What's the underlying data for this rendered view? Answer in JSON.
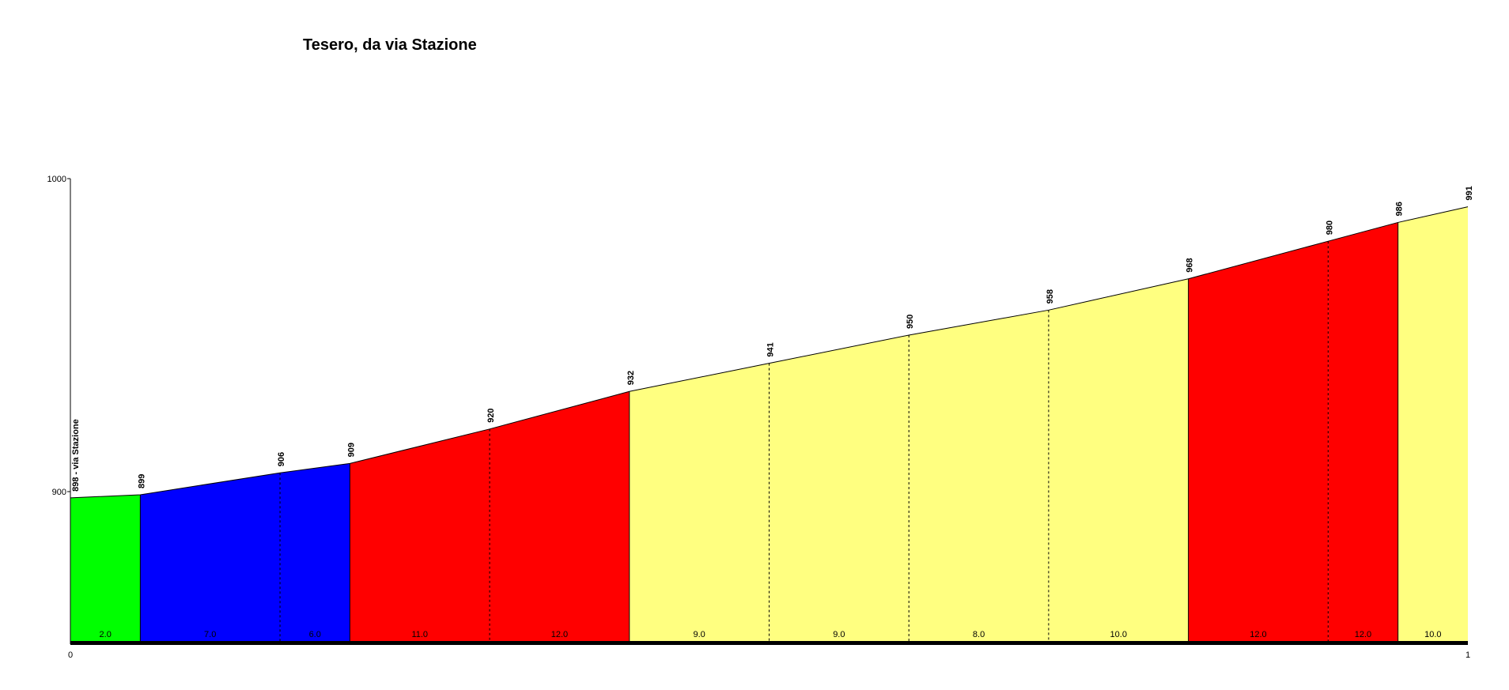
{
  "chart_data": {
    "type": "area",
    "title": "Tesero, da via Stazione",
    "xlabel": "",
    "ylabel": "",
    "xlim": [
      0,
      1
    ],
    "ylim": [
      855,
      1000
    ],
    "x_ticks": [
      "0",
      "1"
    ],
    "y_ticks": [
      "900",
      "1000"
    ],
    "grid": false,
    "legend": "none",
    "points": [
      {
        "x": 0.0,
        "elevation": 898,
        "label": "898 - via Stazione"
      },
      {
        "x": 0.05,
        "elevation": 899,
        "label": "899"
      },
      {
        "x": 0.15,
        "elevation": 906,
        "label": "906"
      },
      {
        "x": 0.2,
        "elevation": 909,
        "label": "909"
      },
      {
        "x": 0.3,
        "elevation": 920,
        "label": "920"
      },
      {
        "x": 0.4,
        "elevation": 932,
        "label": "932"
      },
      {
        "x": 0.5,
        "elevation": 941,
        "label": "941"
      },
      {
        "x": 0.6,
        "elevation": 950,
        "label": "950"
      },
      {
        "x": 0.7,
        "elevation": 958,
        "label": "958"
      },
      {
        "x": 0.8,
        "elevation": 968,
        "label": "968"
      },
      {
        "x": 0.9,
        "elevation": 980,
        "label": "980"
      },
      {
        "x": 0.95,
        "elevation": 986,
        "label": "986"
      },
      {
        "x": 1.0,
        "elevation": 991,
        "label": "991"
      }
    ],
    "segments": [
      {
        "gradient": "2.0",
        "color": "#00ff00"
      },
      {
        "gradient": "7.0",
        "color": "#0000ff"
      },
      {
        "gradient": "6.0",
        "color": "#0000ff"
      },
      {
        "gradient": "11.0",
        "color": "#ff0000"
      },
      {
        "gradient": "12.0",
        "color": "#ff0000"
      },
      {
        "gradient": "9.0",
        "color": "#ffff80"
      },
      {
        "gradient": "9.0",
        "color": "#ffff80"
      },
      {
        "gradient": "8.0",
        "color": "#ffff80"
      },
      {
        "gradient": "10.0",
        "color": "#ffff80"
      },
      {
        "gradient": "12.0",
        "color": "#ff0000"
      },
      {
        "gradient": "12.0",
        "color": "#ff0000"
      },
      {
        "gradient": "10.0",
        "color": "#ffff80"
      }
    ]
  }
}
